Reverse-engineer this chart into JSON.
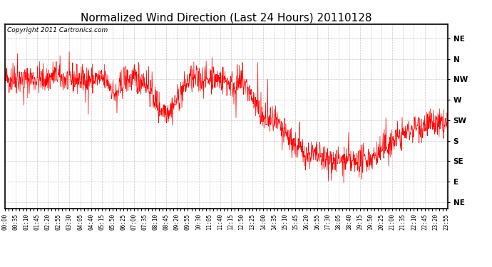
{
  "title": "Normalized Wind Direction (Last 24 Hours) 20110128",
  "copyright_text": "Copyright 2011 Cartronics.com",
  "line_color": "#FF0000",
  "background_color": "#FFFFFF",
  "grid_color": "#BBBBBB",
  "ytick_labels": [
    "NE",
    "N",
    "NW",
    "W",
    "SW",
    "S",
    "SE",
    "E",
    "NE"
  ],
  "ytick_values": [
    8,
    7,
    6,
    5,
    4,
    3,
    2,
    1,
    0
  ],
  "ylim": [
    -0.3,
    8.7
  ],
  "figsize": [
    6.9,
    3.75
  ],
  "dpi": 100,
  "title_fontsize": 11,
  "copyright_fontsize": 6.5,
  "ytick_fontsize": 7.5,
  "xtick_fontsize": 5.5
}
